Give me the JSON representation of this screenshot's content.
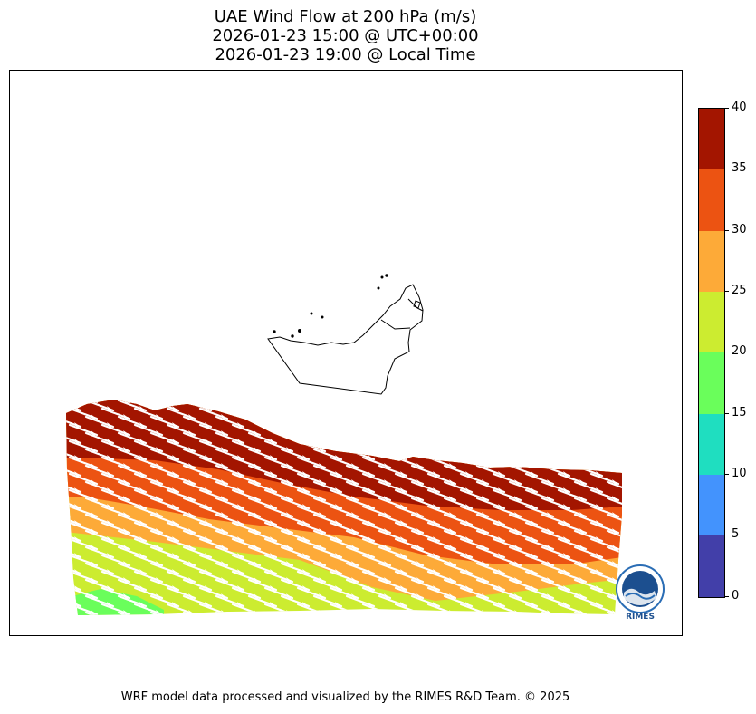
{
  "title": {
    "line1": "UAE Wind Flow at 200 hPa (m/s)",
    "line2": "2026-01-23 15:00 @ UTC+00:00",
    "line3": "2026-01-23 19:00 @ Local Time"
  },
  "colorbar": {
    "ticks": [
      "40",
      "35",
      "30",
      "25",
      "20",
      "15",
      "10",
      "5",
      "0"
    ],
    "colors": [
      "#a31500",
      "#ec5312",
      "#fdaa38",
      "#ccec30",
      "#6afe5b",
      "#1fdec0",
      "#4393fd",
      "#423fa9"
    ]
  },
  "logo": {
    "text": "RIMES",
    "ring_text": "Regional Integrated Multi-Hazard Early Warning System"
  },
  "footer": "WRF model data processed and visualized by the RIMES R&D Team. © 2025"
}
